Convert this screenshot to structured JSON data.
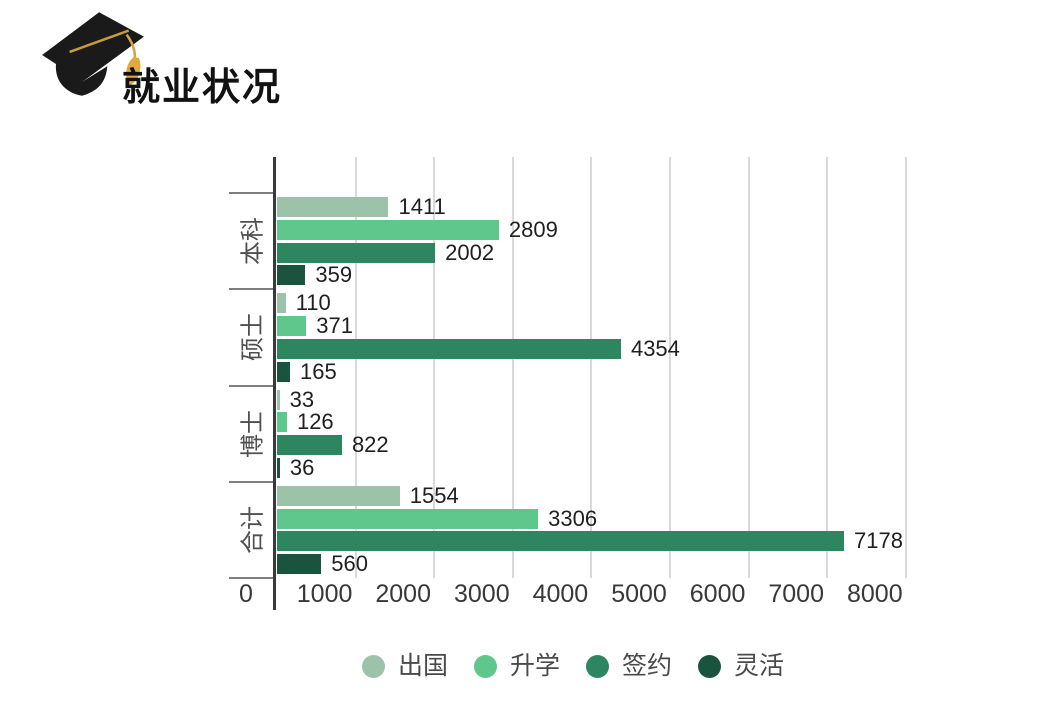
{
  "header": {
    "icon": "graduation-cap-icon",
    "title": "就业状况",
    "cap_color": "#1a1a1a",
    "tassel_color": "#d7a43c"
  },
  "chart_data": {
    "type": "bar",
    "orientation": "horizontal",
    "title": "就业状况",
    "categories": [
      "本科",
      "硕士",
      "博士",
      "合计"
    ],
    "series": [
      {
        "name": "出国",
        "color": "#9cc3aa",
        "values": [
          1411,
          110,
          33,
          1554
        ]
      },
      {
        "name": "升学",
        "color": "#5fc68c",
        "values": [
          2809,
          371,
          126,
          3306
        ]
      },
      {
        "name": "签约",
        "color": "#2e8661",
        "values": [
          2002,
          4354,
          822,
          7178
        ]
      },
      {
        "name": "灵活",
        "color": "#1b543e",
        "values": [
          359,
          165,
          36,
          560
        ]
      }
    ],
    "x_ticks": [
      "0",
      "1000",
      "2000",
      "3000",
      "4000",
      "5000",
      "6000",
      "7000",
      "8000"
    ],
    "xlim": [
      0,
      8000
    ],
    "grid": true,
    "gridline_color": "#d9d9d9",
    "axis_color": "#3a3a3a",
    "tick_mark_color": "#7f7f7f",
    "value_label_color": "#1f1f1f",
    "x_tick_label_color": "#383838",
    "category_label_color": "#4f4f4f",
    "legend_position": "bottom",
    "legend_text_color": "#4a4a4a"
  }
}
